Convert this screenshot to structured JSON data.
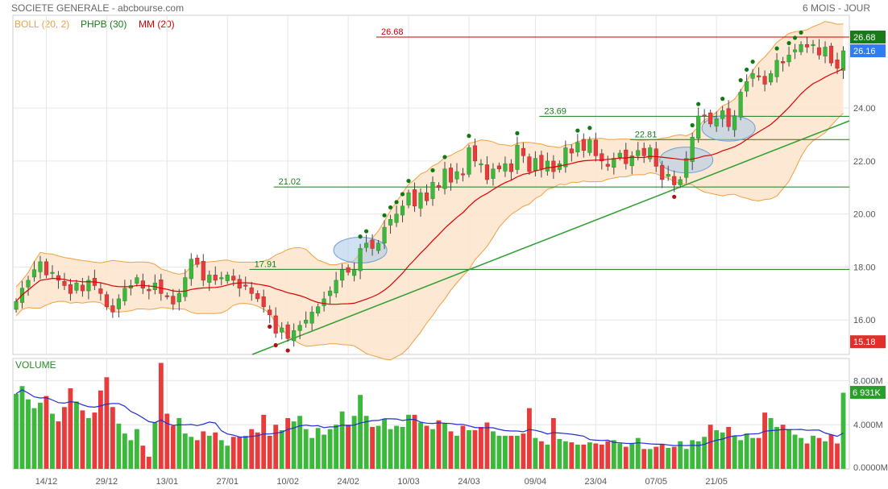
{
  "header": {
    "title": "SOCIETE GENERALE - abcbourse.com",
    "period": "6 MOIS - JOUR"
  },
  "legend": [
    {
      "label": "BOLL (20, 2)",
      "color": "#f0a040"
    },
    {
      "label": "PHPB (30)",
      "color": "#1a7a1a"
    },
    {
      "label": "MM (20)",
      "color": "#dd0000"
    }
  ],
  "volume_label": "VOLUME",
  "colors": {
    "up": "#3cb83c",
    "down": "#e83c3c",
    "boll_fill": "#fde4cc",
    "boll_line": "#f0a040",
    "mm": "#dd0000",
    "trend": "#2e9e2e",
    "level": "#1a7a1a",
    "top_level": "#cc0000",
    "volume_avg": "#1f2fd0"
  },
  "chart_data": [
    {
      "type": "candlestick",
      "x_ticks": [
        "14/12",
        "29/12",
        "13/01",
        "27/01",
        "10/02",
        "24/02",
        "10/03",
        "24/03",
        "09/04",
        "23/04",
        "07/05",
        "21/05"
      ],
      "y_ticks": [
        "16.00",
        "18.00",
        "20.00",
        "22.00",
        "24.00"
      ],
      "ylim": [
        14.7,
        27.5
      ],
      "price_badges": [
        {
          "label": "26.68",
          "value": 26.68,
          "color": "#1a7a1a"
        },
        {
          "label": "26.16",
          "value": 26.16,
          "color": "#2f7cf6"
        },
        {
          "label": "15.18",
          "value": 15.18,
          "color": "#e0302a"
        }
      ],
      "levels": [
        {
          "label": "26.68",
          "value": 26.68,
          "color": "#cc0000"
        },
        {
          "label": "23.69",
          "value": 23.69,
          "color": "#1a7a1a"
        },
        {
          "label": "22.81",
          "value": 22.81,
          "color": "#1a7a1a"
        },
        {
          "label": "21.02",
          "value": 21.02,
          "color": "#1a7a1a"
        },
        {
          "label": "17.91",
          "value": 17.91,
          "color": "#1a7a1a"
        }
      ],
      "closes": [
        16.7,
        17.2,
        17.5,
        17.9,
        18.2,
        17.7,
        17.8,
        17.5,
        17.3,
        17.0,
        17.4,
        17.1,
        17.5,
        17.3,
        17.0,
        16.5,
        16.3,
        16.8,
        17.2,
        17.3,
        17.6,
        17.2,
        17.1,
        17.4,
        17.0,
        16.9,
        16.6,
        17.0,
        17.6,
        18.3,
        18.1,
        17.5,
        17.7,
        17.5,
        17.6,
        17.7,
        17.5,
        17.2,
        17.3,
        17.0,
        16.8,
        16.5,
        16.2,
        15.5,
        15.7,
        15.3,
        15.6,
        15.8,
        16.0,
        16.3,
        16.5,
        16.8,
        17.1,
        17.5,
        17.9,
        17.8,
        17.9,
        18.7,
        18.9,
        18.7,
        18.9,
        19.5,
        19.8,
        20.0,
        20.3,
        20.8,
        20.3,
        20.8,
        20.5,
        21.2,
        21.0,
        21.7,
        21.2,
        21.6,
        21.5,
        22.5,
        22.0,
        21.9,
        21.3,
        21.7,
        21.7,
        21.9,
        21.6,
        22.6,
        22.2,
        21.6,
        22.1,
        21.7,
        22.0,
        21.6,
        21.9,
        22.5,
        22.3,
        22.7,
        22.4,
        22.8,
        22.2,
        22.0,
        21.8,
        22.1,
        22.3,
        21.9,
        22.2,
        22.4,
        22.2,
        22.5,
        21.8,
        21.3,
        21.5,
        21.1,
        21.3,
        22.1,
        22.9,
        23.7,
        23.7,
        23.4,
        23.6,
        23.9,
        23.3,
        23.7,
        24.6,
        25.0,
        25.3,
        25.2,
        24.9,
        25.3,
        25.8,
        25.7,
        26.0,
        26.2,
        26.4,
        26.3,
        26.4,
        26.0,
        26.3,
        25.7,
        25.5,
        26.16
      ]
    },
    {
      "type": "bar",
      "title": "VOLUME",
      "y_ticks": [
        "8.000M",
        "4.000M",
        "0.0000M"
      ],
      "ylim": [
        0,
        10
      ],
      "badge": {
        "label": "6 931K",
        "value": 6.931,
        "color": "#2a9d2a"
      },
      "volumes": [
        6.8,
        7.5,
        6.3,
        5.5,
        6.0,
        6.6,
        5.0,
        4.3,
        5.6,
        7.3,
        6.1,
        5.3,
        4.6,
        5.1,
        7.1,
        8.3,
        5.6,
        4.1,
        3.2,
        2.6,
        3.6,
        2.1,
        1.1,
        4.2,
        9.6,
        5.0,
        3.9,
        4.6,
        3.2,
        2.9,
        2.6,
        3.4,
        3.0,
        3.3,
        2.6,
        2.1,
        2.9,
        2.9,
        3.0,
        3.6,
        3.3,
        4.9,
        3.0,
        4.0,
        3.5,
        4.6,
        4.3,
        4.8,
        3.6,
        2.8,
        3.7,
        3.1,
        3.6,
        4.0,
        5.2,
        4.0,
        4.8,
        6.7,
        4.8,
        3.8,
        3.9,
        4.5,
        3.6,
        3.9,
        3.8,
        4.9,
        4.9,
        4.2,
        3.9,
        3.6,
        4.4,
        4.1,
        3.4,
        3.0,
        3.9,
        3.5,
        3.5,
        3.8,
        4.2,
        3.4,
        3.0,
        3.0,
        3.0,
        3.0,
        3.2,
        5.5,
        2.8,
        2.5,
        2.2,
        4.6,
        2.7,
        2.5,
        2.4,
        2.2,
        2.2,
        2.4,
        2.3,
        2.2,
        2.5,
        2.6,
        2.3,
        2.0,
        2.3,
        2.8,
        1.8,
        1.8,
        2.0,
        2.2,
        1.9,
        2.0,
        2.5,
        1.8,
        2.6,
        2.5,
        2.9,
        4.0,
        3.5,
        3.3,
        3.8,
        3.0,
        2.6,
        3.2,
        2.8,
        2.8,
        5.1,
        4.6,
        3.8,
        4.0,
        3.6,
        3.1,
        2.8,
        2.3,
        3.0,
        2.8,
        2.5,
        3.1,
        2.3,
        6.9
      ]
    }
  ]
}
